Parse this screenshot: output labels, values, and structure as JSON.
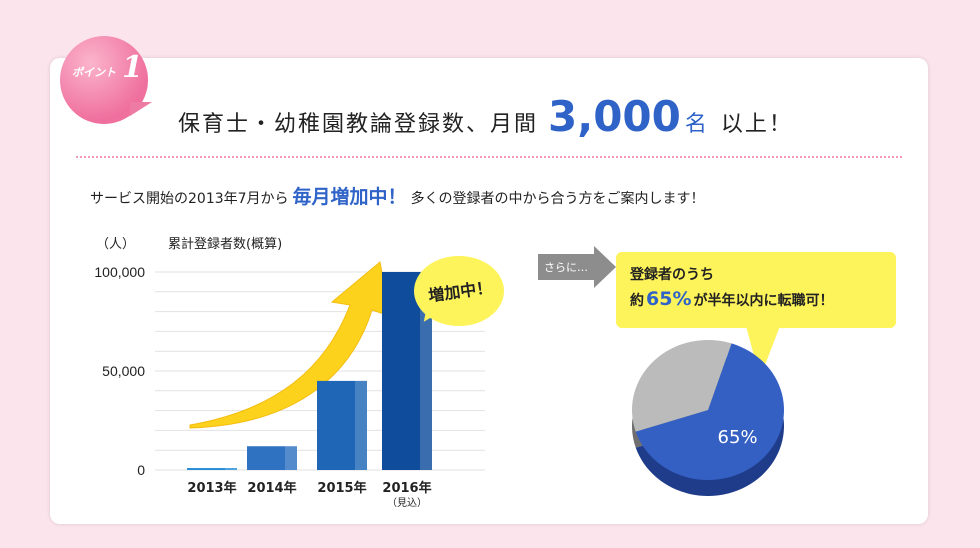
{
  "badge": {
    "text": "ポイント",
    "number": "1"
  },
  "headline": {
    "prefix": "保育士・幼稚園教論登録数、月間",
    "number": "3,000",
    "unit": "名",
    "suffix": "以上！"
  },
  "subline": {
    "before": "サービス開始の2013年7月から",
    "highlight": "毎月増加中！",
    "after": "多くの登録者の中から合う方をご案内します！"
  },
  "chart_data": [
    {
      "type": "bar",
      "title": "累計登録者数(概算)",
      "ylabel": "（人）",
      "categories": [
        "2013年",
        "2014年",
        "2015年",
        "2016年"
      ],
      "category_notes": [
        "",
        "",
        "",
        "（見込）"
      ],
      "values": [
        1000,
        12000,
        45000,
        100000
      ],
      "ylim": [
        0,
        100000
      ],
      "yticks": [
        0,
        50000,
        100000
      ],
      "ytick_labels": [
        "0",
        "50,000",
        "100,000"
      ],
      "grid": true,
      "colors": [
        "#2a8fd6",
        "#2f72c2",
        "#1f67b6",
        "#0f4d9c"
      ],
      "annotation": "増加中！"
    },
    {
      "type": "pie",
      "values": [
        65,
        35
      ],
      "labels": [
        "65%",
        ""
      ],
      "colors": [
        "#3460c4",
        "#bbbbbb"
      ]
    }
  ],
  "callout": {
    "tag": "さらに…",
    "line1": "登録者のうち",
    "line2_pre": "約",
    "line2_num": "65%",
    "line2_post": "が半年以内に転職可！"
  }
}
